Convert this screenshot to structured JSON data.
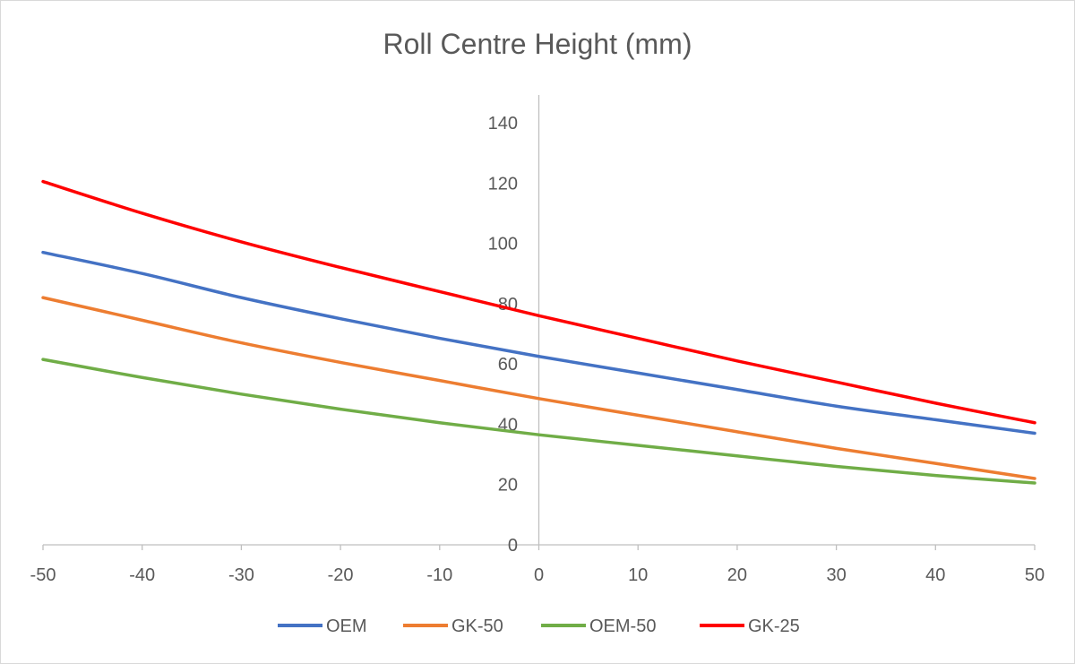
{
  "chart_data": {
    "type": "line",
    "title": "Roll Centre Height (mm)",
    "xlabel": "",
    "ylabel": "",
    "xlim": [
      -50,
      50
    ],
    "ylim": [
      0,
      150
    ],
    "x_ticks": [
      -50,
      -40,
      -30,
      -20,
      -10,
      0,
      10,
      20,
      30,
      40,
      50
    ],
    "y_ticks": [
      0,
      20,
      40,
      60,
      80,
      100,
      120,
      140
    ],
    "grid": false,
    "legend_position": "bottom",
    "x": [
      -50,
      -40,
      -30,
      -20,
      -10,
      0,
      10,
      20,
      30,
      40,
      50
    ],
    "series": [
      {
        "name": "OEM",
        "color": "#4472C4",
        "values": [
          97,
          90,
          82,
          75,
          68.5,
          62.5,
          57,
          51.5,
          46,
          41.5,
          37
        ]
      },
      {
        "name": "GK-50",
        "color": "#ED7D31",
        "values": [
          82,
          74.5,
          67,
          60.5,
          54.5,
          48.5,
          43,
          37.5,
          32,
          27,
          22
        ]
      },
      {
        "name": "OEM-50",
        "color": "#70AD47",
        "values": [
          61.5,
          55.5,
          50,
          45,
          40.5,
          36.5,
          33,
          29.5,
          26,
          23,
          20.5
        ]
      },
      {
        "name": "GK-25",
        "color": "#FF0000",
        "values": [
          120.5,
          110,
          100.5,
          92,
          84,
          76,
          68.5,
          61,
          54,
          47,
          40.5
        ]
      }
    ]
  }
}
